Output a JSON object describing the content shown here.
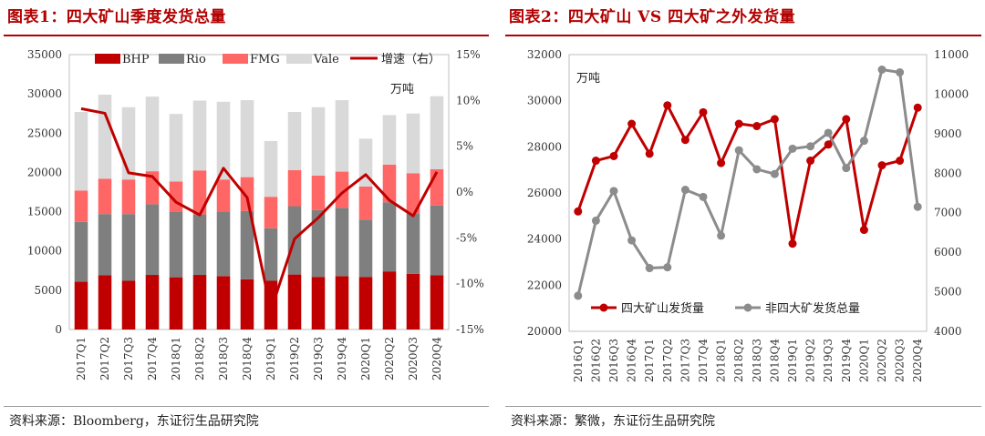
{
  "chart_data": [
    {
      "type": "bar",
      "title": "图表1：四大矿山季度发货总量",
      "unit_label": "万吨",
      "source": "资料来源：Bloomberg，东证衍生品研究院",
      "stacked": true,
      "categories": [
        "2017Q1",
        "2017Q2",
        "2017Q3",
        "2017Q4",
        "2018Q1",
        "2018Q2",
        "2018Q3",
        "2018Q4",
        "2019Q1",
        "2019Q2",
        "2019Q3",
        "2019Q4",
        "2020Q1",
        "2020Q2",
        "2020Q3",
        "2020Q4"
      ],
      "series": [
        {
          "name": "BHP",
          "color": "#c00000",
          "values": [
            6100,
            6900,
            6200,
            6950,
            6650,
            6950,
            6800,
            6400,
            6200,
            7000,
            6700,
            6800,
            6700,
            7400,
            7100,
            6900
          ]
        },
        {
          "name": "Rio",
          "color": "#7f7f7f",
          "values": [
            7600,
            7800,
            8500,
            9000,
            8300,
            7700,
            8200,
            8700,
            6700,
            8700,
            8500,
            8700,
            7300,
            8800,
            7700,
            8900
          ]
        },
        {
          "name": "FMG",
          "color": "#ff6666",
          "values": [
            4000,
            4500,
            4400,
            4200,
            3900,
            5600,
            4100,
            4300,
            4000,
            4600,
            4400,
            4600,
            4200,
            4800,
            5100,
            4600
          ]
        },
        {
          "name": "Vale",
          "color": "#d9d9d9",
          "values": [
            10000,
            10700,
            9200,
            9500,
            8600,
            8900,
            9900,
            9800,
            7100,
            7400,
            8700,
            9100,
            6100,
            6300,
            7600,
            9300
          ]
        }
      ],
      "line_series": {
        "name": "增速（右）",
        "color": "#c00000",
        "values": [
          9.1,
          8.6,
          2.1,
          1.7,
          -1.1,
          -2.5,
          2.6,
          -0.6,
          -12.9,
          -5.1,
          -2.8,
          -0.1,
          1.9,
          -0.9,
          -2.6,
          2.2
        ]
      },
      "ylim": [
        0,
        35000
      ],
      "yticks": [
        0,
        5000,
        10000,
        15000,
        20000,
        25000,
        30000,
        35000
      ],
      "y2lim": [
        -15,
        15
      ],
      "y2ticks": [
        -15,
        -10,
        -5,
        0,
        5,
        10,
        15
      ],
      "y2_tick_suffix": "%",
      "grid": false,
      "legend": "top"
    },
    {
      "type": "line",
      "title": "图表2：四大矿山 VS 四大矿之外发货量",
      "unit_label": "万吨",
      "source": "资料来源：繁微，东证衍生品研究院",
      "categories": [
        "2016Q1",
        "2016Q2",
        "2016Q3",
        "2016Q4",
        "2017Q1",
        "2017Q2",
        "2017Q3",
        "2017Q4",
        "2018Q1",
        "2018Q2",
        "2018Q3",
        "2018Q4",
        "2019Q1",
        "2019Q2",
        "2019Q3",
        "2019Q4",
        "2020Q1",
        "2020Q2",
        "2020Q3",
        "2020Q4"
      ],
      "series": [
        {
          "name": "四大矿山发货量",
          "axis": "left",
          "color": "#c00000",
          "values": [
            25200,
            27400,
            27600,
            29000,
            27700,
            29800,
            28300,
            29500,
            27300,
            29000,
            28900,
            29200,
            23800,
            27400,
            28100,
            29200,
            24400,
            27200,
            27400,
            29700
          ]
        },
        {
          "name": "非四大矿发货总量",
          "axis": "right",
          "color": "#8c8c8c",
          "values": [
            4900,
            6800,
            7550,
            6300,
            5600,
            5620,
            7580,
            7400,
            6420,
            8580,
            8100,
            7980,
            8620,
            8680,
            9020,
            8130,
            8820,
            10620,
            10550,
            7150
          ]
        }
      ],
      "ylim": [
        20000,
        32000
      ],
      "yticks": [
        20000,
        22000,
        24000,
        26000,
        28000,
        30000,
        32000
      ],
      "y2lim": [
        4000,
        11000
      ],
      "y2ticks": [
        4000,
        5000,
        6000,
        7000,
        8000,
        9000,
        10000,
        11000
      ],
      "grid": false,
      "legend": "bottom-left"
    }
  ]
}
